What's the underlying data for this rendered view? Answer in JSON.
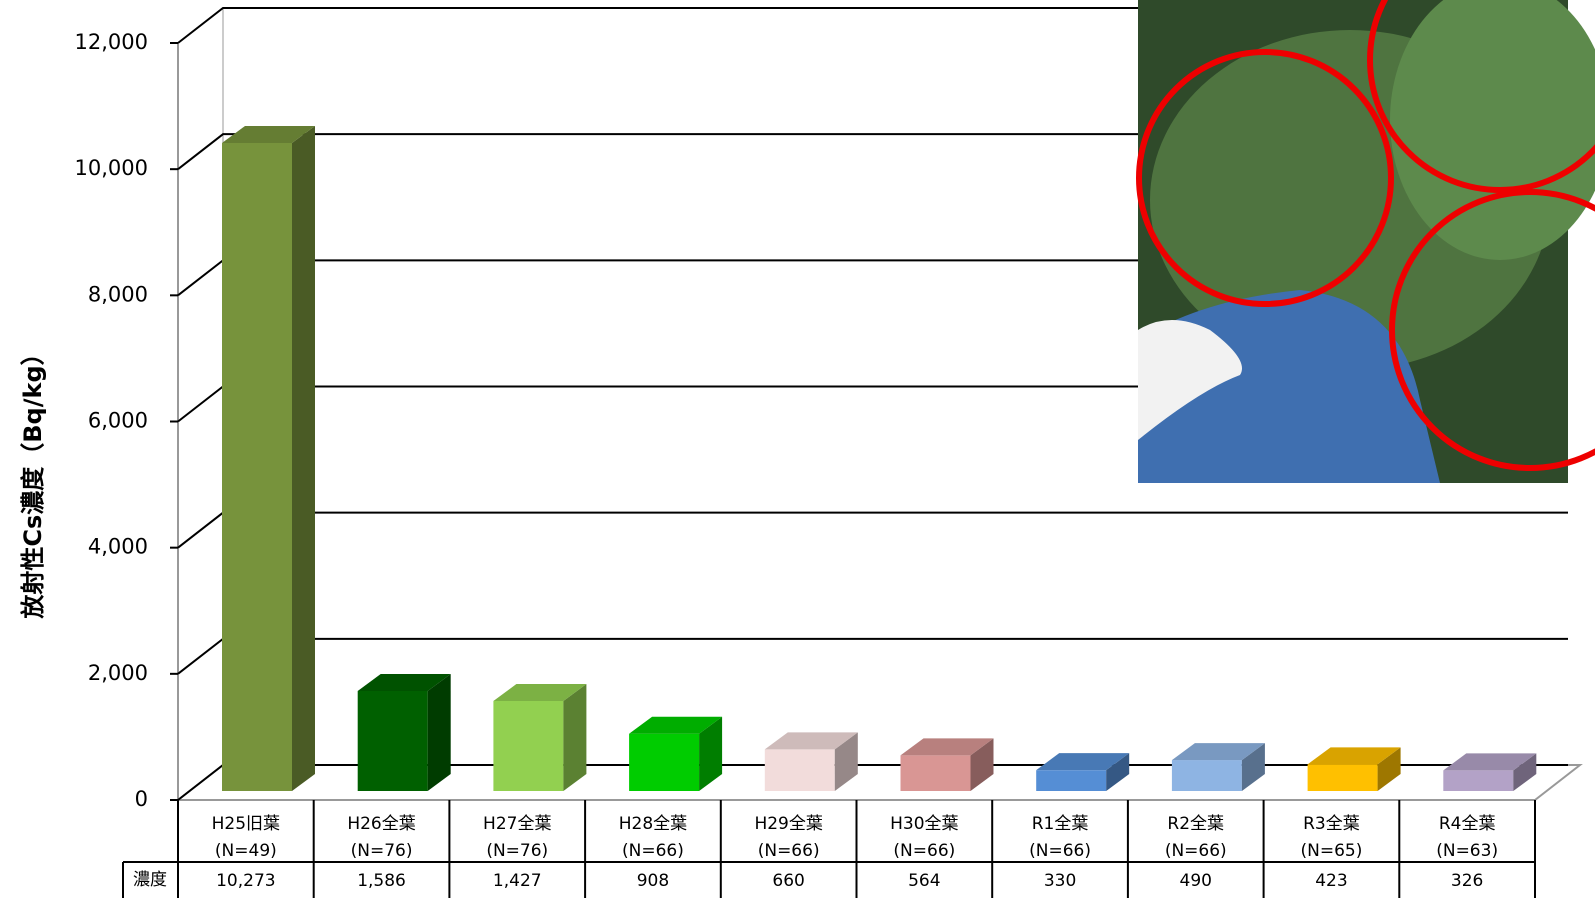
{
  "chart_data": {
    "type": "bar3d",
    "y_axis_label": "放射性Cs濃度（Bq/kg）",
    "categories": [
      "H25旧葉",
      "H26全葉",
      "H27全葉",
      "H28全葉",
      "H29全葉",
      "H30全葉",
      "R1全葉",
      "R2全葉",
      "R3全葉",
      "R4全葉"
    ],
    "category_counts": [
      "(N=49)",
      "(N=76)",
      "(N=76)",
      "(N=66)",
      "(N=66)",
      "(N=66)",
      "(N=66)",
      "(N=66)",
      "(N=65)",
      "(N=63)"
    ],
    "table_row_label": "濃度",
    "values": [
      10273,
      1586,
      1427,
      908,
      660,
      564,
      330,
      490,
      423,
      326
    ],
    "value_labels": [
      "10,273",
      "1,586",
      "1,427",
      "908",
      "660",
      "564",
      "330",
      "490",
      "423",
      "326"
    ],
    "colors": [
      "#77933c",
      "#006000",
      "#92d050",
      "#00cc00",
      "#f2dcdb",
      "#d99694",
      "#558ed5",
      "#8eb4e3",
      "#ffc000",
      "#b3a2c7"
    ],
    "ylim": [
      0,
      12000
    ],
    "yticks": [
      0,
      {
        "value": 2000,
        "label": "2,000"
      },
      {
        "value": 4000,
        "label": "4,000"
      },
      {
        "value": 6000,
        "label": "6,000"
      },
      {
        "value": 8000,
        "label": "8,000"
      },
      {
        "value": 10000,
        "label": "10,000"
      },
      {
        "value": 12000,
        "label": "12,000"
      }
    ],
    "grid": true
  }
}
